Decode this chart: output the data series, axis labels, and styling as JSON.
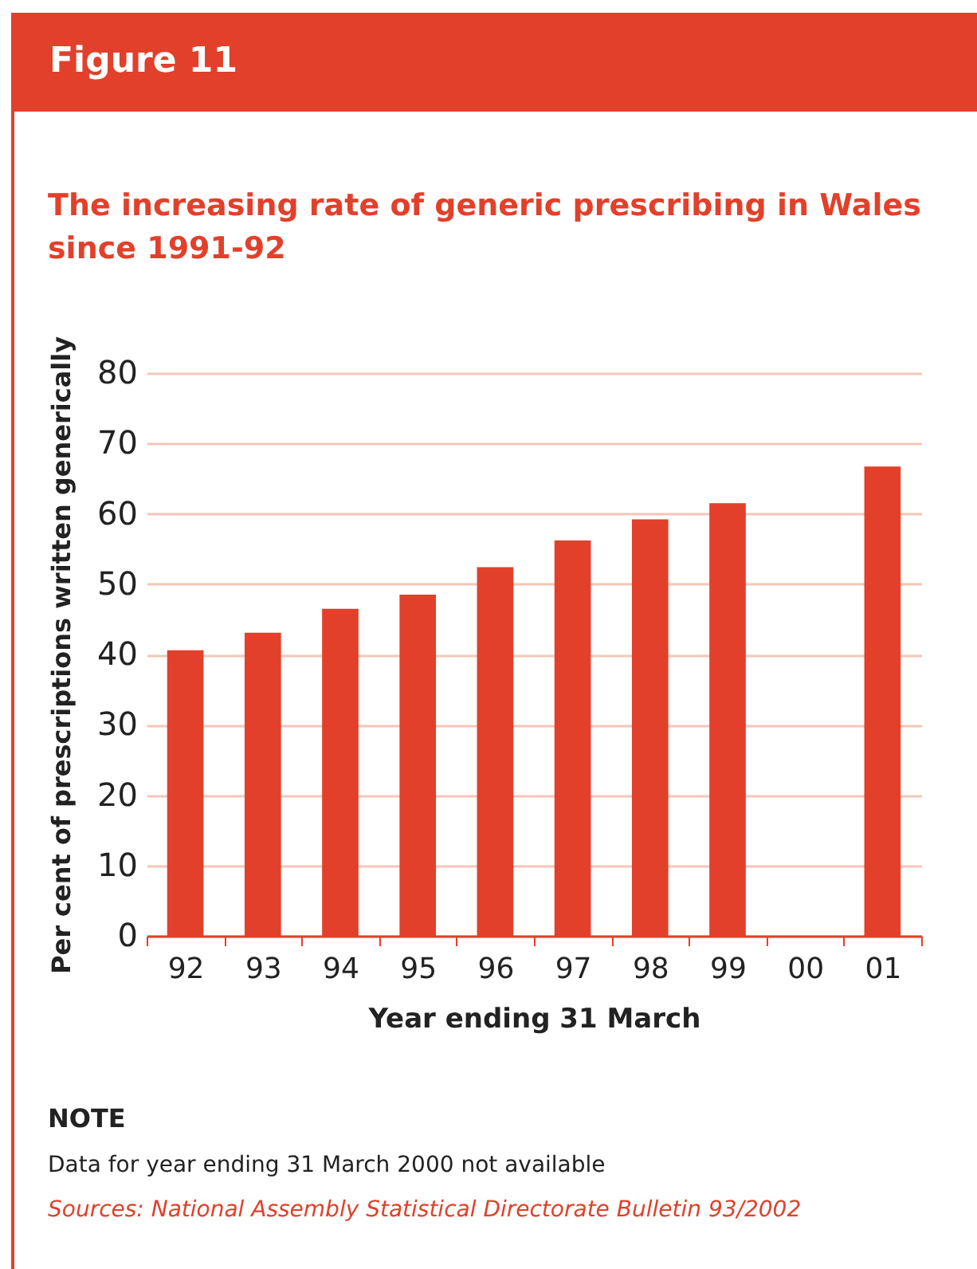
{
  "chart_data": {
    "type": "bar",
    "title": "Figure 11",
    "subtitle": "The increasing rate of generic prescribing in Wales since 1991-92",
    "xlabel": "Year ending 31 March",
    "ylabel": "Per cent of prescriptions written generically",
    "categories": [
      "92",
      "93",
      "94",
      "95",
      "96",
      "97",
      "98",
      "99",
      "00",
      "01"
    ],
    "values": [
      40.6,
      43.1,
      46.5,
      48.5,
      52.4,
      56.2,
      59.2,
      61.5,
      null,
      66.7
    ],
    "color": "#e2402b",
    "ylim": [
      0,
      80
    ],
    "yticks": [
      0,
      10,
      20,
      30,
      40,
      50,
      60,
      70,
      80
    ],
    "grid": "y",
    "annotations": [
      "NOTE",
      "Data for year ending 31 March 2000 not available",
      "Sources: National Assembly Statistical Directorate Bulletin 93/2002"
    ]
  }
}
